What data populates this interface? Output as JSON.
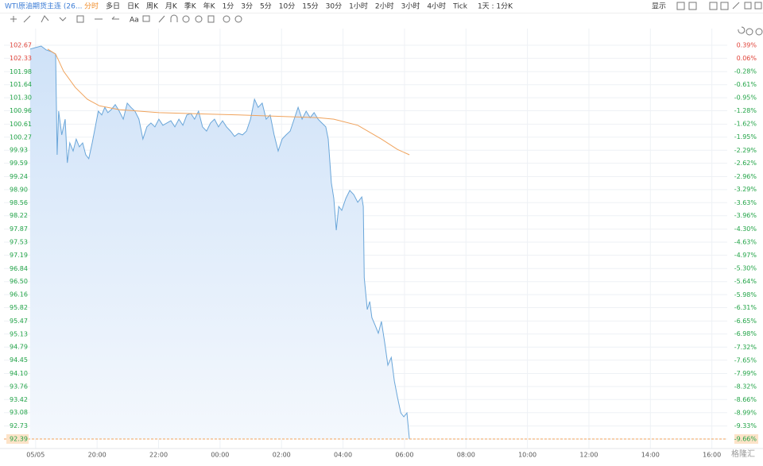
{
  "toolbar": {
    "symbol": "WTI原油期货主连 (26...",
    "periods": [
      "分时",
      "多日",
      "日K",
      "周K",
      "月K",
      "季K",
      "年K",
      "1分",
      "3分",
      "5分",
      "10分",
      "15分",
      "30分",
      "1小时",
      "2小时",
      "3小时",
      "4小时",
      "Tick"
    ],
    "mode": "1天 : 1分K",
    "display": "显示"
  },
  "watermark": "格隆汇",
  "chart_data": {
    "type": "area",
    "series": [
      {
        "color": "#6aa6d9",
        "fill": true,
        "x": [
          -0.18,
          0,
          0.18,
          0.34,
          0.52,
          0.65,
          0.7,
          0.75,
          0.85,
          0.96,
          1.03,
          1.11,
          1.22,
          1.32,
          1.42,
          1.53,
          1.63,
          1.73,
          1.84,
          1.94,
          2.04,
          2.15,
          2.25,
          2.35,
          2.46,
          2.59,
          2.72,
          2.85,
          2.98,
          3.1,
          3.23,
          3.36,
          3.49,
          3.62,
          3.75,
          3.88,
          4.01,
          4.14,
          4.27,
          4.4,
          4.53,
          4.66,
          4.79,
          4.92,
          5.05,
          5.17,
          5.3,
          5.43,
          5.56,
          5.69,
          5.82,
          5.95,
          6.08,
          6.21,
          6.34,
          6.47,
          6.6,
          6.73,
          6.86,
          6.99,
          7.12,
          7.24,
          7.37,
          7.5,
          7.63,
          7.76,
          7.89,
          8.02,
          8.15,
          8.28,
          8.41,
          8.54,
          8.67,
          8.8,
          8.93,
          9.06,
          9.19,
          9.31,
          9.44,
          9.52,
          9.62,
          9.7,
          9.78,
          9.86,
          9.96,
          10.09,
          10.22,
          10.35,
          10.48,
          10.61,
          10.66,
          10.69,
          10.79,
          10.87,
          10.94,
          11.05,
          11.15,
          11.25,
          11.35,
          11.46,
          11.57,
          11.67,
          11.77,
          11.88,
          11.98,
          12.08,
          12.16
        ],
        "values": [
          102.57,
          102.61,
          102.65,
          102.55,
          102.5,
          102.44,
          99.81,
          100.95,
          100.33,
          100.74,
          99.6,
          100.12,
          99.91,
          100.22,
          100.02,
          100.12,
          99.81,
          99.71,
          100.12,
          100.54,
          100.95,
          100.85,
          101.05,
          100.91,
          100.99,
          101.12,
          100.95,
          100.74,
          101.16,
          101.05,
          100.95,
          100.74,
          100.22,
          100.54,
          100.64,
          100.54,
          100.74,
          100.58,
          100.64,
          100.7,
          100.54,
          100.74,
          100.58,
          100.85,
          100.89,
          100.74,
          100.95,
          100.54,
          100.43,
          100.64,
          100.74,
          100.54,
          100.7,
          100.54,
          100.43,
          100.29,
          100.37,
          100.33,
          100.43,
          100.74,
          101.26,
          101.05,
          101.16,
          100.74,
          100.85,
          100.33,
          99.91,
          100.22,
          100.33,
          100.43,
          100.74,
          101.05,
          100.74,
          100.95,
          100.78,
          100.91,
          100.74,
          100.64,
          100.54,
          100.22,
          99.08,
          98.67,
          97.84,
          98.46,
          98.36,
          98.67,
          98.88,
          98.77,
          98.57,
          98.71,
          98.46,
          96.6,
          95.77,
          95.98,
          95.56,
          95.35,
          95.15,
          95.46,
          94.94,
          94.32,
          94.52,
          93.9,
          93.49,
          93.07,
          92.97,
          93.07,
          92.39
        ]
      },
      {
        "color": "#f0a35c",
        "fill": false,
        "x": [
          0.39,
          0.65,
          0.91,
          1.29,
          1.68,
          2.07,
          2.72,
          4.01,
          6.6,
          9.19,
          9.7,
          10.48,
          11.25,
          11.77,
          12.16
        ],
        "values": [
          102.57,
          102.44,
          101.99,
          101.57,
          101.26,
          101.09,
          100.99,
          100.91,
          100.85,
          100.78,
          100.74,
          100.58,
          100.22,
          99.95,
          99.81
        ]
      }
    ],
    "xlim": [
      -1.03,
      22.5
    ],
    "xticks": [
      {
        "value": 0,
        "label": "05/05"
      },
      {
        "value": 2,
        "label": "20:00"
      },
      {
        "value": 4,
        "label": "22:00"
      },
      {
        "value": 6,
        "label": "00:00"
      },
      {
        "value": 8,
        "label": "02:00"
      },
      {
        "value": 10,
        "label": "04:00"
      },
      {
        "value": 12,
        "label": "06:00"
      },
      {
        "value": 14,
        "label": "08:00"
      },
      {
        "value": 16,
        "label": "10:00"
      },
      {
        "value": 18,
        "label": "12:00"
      },
      {
        "value": 20,
        "label": "14:00"
      },
      {
        "value": 22,
        "label": "16:00"
      }
    ],
    "ylim": [
      92.39,
      102.67
    ],
    "yticks": [
      102.67,
      102.33,
      101.98,
      101.64,
      {
        "value": 101.3,
        "label": "101.30"
      },
      100.96,
      100.61,
      100.27,
      99.93,
      99.59,
      99.24,
      {
        "value": 98.9,
        "label": "98.90"
      },
      98.56,
      98.22,
      97.87,
      97.53,
      97.19,
      96.84,
      {
        "value": 96.5,
        "label": "96.50"
      },
      96.16,
      95.82,
      95.47,
      95.13,
      94.79,
      94.45,
      {
        "value": 94.1,
        "label": "94.10"
      },
      93.76,
      93.42,
      93.08,
      92.73,
      92.39
    ],
    "y2lim": [
      -9.66,
      0.39
    ],
    "y2ticks": [
      {
        "value": 0.39,
        "label": "0.39%"
      },
      {
        "value": 0.06,
        "label": "0.06%"
      },
      {
        "value": -0.28,
        "label": "-0.28%"
      },
      {
        "value": -0.61,
        "label": "-0.61%"
      },
      {
        "value": -0.95,
        "label": "-0.95%"
      },
      {
        "value": -1.28,
        "label": "-1.28%"
      },
      {
        "value": -1.62,
        "label": "-1.62%"
      },
      {
        "value": -1.95,
        "label": "-1.95%"
      },
      {
        "value": -2.29,
        "label": "-2.29%"
      },
      {
        "value": -2.62,
        "label": "-2.62%"
      },
      {
        "value": -2.96,
        "label": "-2.96%"
      },
      {
        "value": -3.29,
        "label": "-3.29%"
      },
      {
        "value": -3.63,
        "label": "-3.63%"
      },
      {
        "value": -3.96,
        "label": "-3.96%"
      },
      {
        "value": -4.3,
        "label": "-4.30%"
      },
      {
        "value": -4.63,
        "label": "-4.63%"
      },
      {
        "value": -4.97,
        "label": "-4.97%"
      },
      {
        "value": -5.3,
        "label": "-5.30%"
      },
      {
        "value": -5.64,
        "label": "-5.64%"
      },
      {
        "value": -5.98,
        "label": "-5.98%"
      },
      {
        "value": -6.31,
        "label": "-6.31%"
      },
      {
        "value": -6.65,
        "label": "-6.65%"
      },
      {
        "value": -6.98,
        "label": "-6.98%"
      },
      {
        "value": -7.32,
        "label": "-7.32%"
      },
      {
        "value": -7.65,
        "label": "-7.65%"
      },
      {
        "value": -7.99,
        "label": "-7.99%"
      },
      {
        "value": -8.32,
        "label": "-8.32%"
      },
      {
        "value": -8.66,
        "label": "-8.66%"
      },
      {
        "value": -8.99,
        "label": "-8.99%"
      },
      {
        "value": -9.33,
        "label": "-9.33%"
      },
      {
        "value": -9.66,
        "label": "-9.66%"
      }
    ],
    "grid": true,
    "up_color": "#e0443a",
    "down_color": "#22a447",
    "last_color": "#f0a35c"
  }
}
